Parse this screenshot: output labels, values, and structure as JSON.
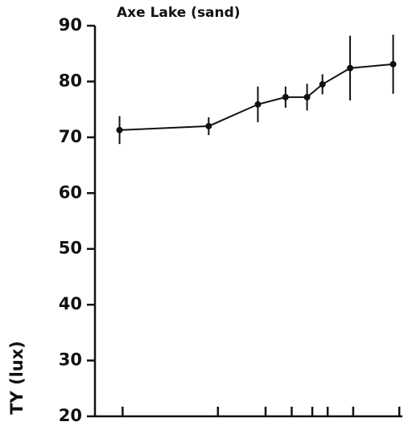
{
  "chart_data": {
    "type": "line",
    "title": "Axe Lake (sand)",
    "ylabel": "TY (lux)",
    "x": [
      8,
      37,
      53,
      62,
      69,
      74,
      83,
      97
    ],
    "series": [
      {
        "color": "#111111",
        "values": [
          71.3,
          72.0,
          75.9,
          77.2,
          77.2,
          79.5,
          82.4,
          83.1
        ],
        "errors": [
          2.5,
          1.6,
          3.2,
          1.9,
          2.4,
          1.8,
          5.8,
          5.3
        ]
      }
    ],
    "xlim": [
      0,
      100
    ],
    "xticks": [
      9,
      40,
      55.5,
      64,
      70.7,
      75.7,
      84,
      99
    ],
    "ylim": [
      20,
      90
    ],
    "yticks": [
      20,
      30,
      40,
      50,
      60,
      70,
      80,
      90
    ]
  }
}
